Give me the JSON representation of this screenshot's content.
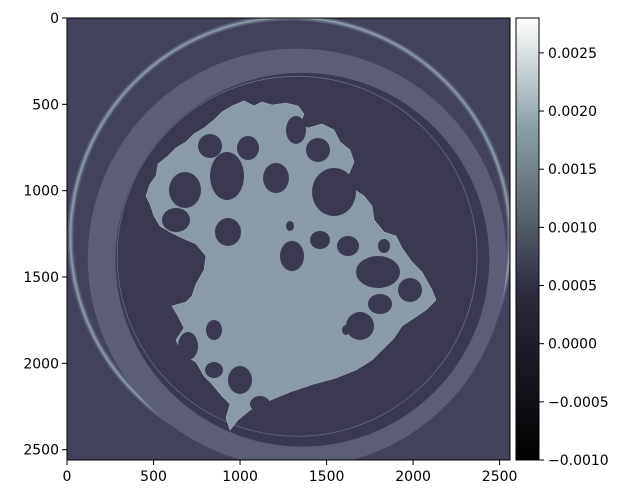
{
  "chart_data": {
    "type": "heatmap",
    "title": "",
    "xlabel": "",
    "ylabel": "",
    "xlim": [
      0,
      2560
    ],
    "ylim": [
      2560,
      0
    ],
    "x_ticks": [
      0,
      500,
      1000,
      1500,
      2000,
      2500
    ],
    "x_tick_labels": [
      "0",
      "500",
      "1000",
      "1500",
      "2000",
      "2500"
    ],
    "y_ticks": [
      0,
      500,
      1000,
      1500,
      2000,
      2500
    ],
    "y_tick_labels": [
      "0",
      "500",
      "1000",
      "1500",
      "2000",
      "2500"
    ],
    "colormap": "bone",
    "colorbar": {
      "vmin": -0.001,
      "vmax": 0.0028,
      "ticks": [
        -0.001,
        -0.0005,
        0.0,
        0.0005,
        0.001,
        0.0015,
        0.002,
        0.0025
      ],
      "tick_labels": [
        "−0.0010",
        "−0.0005",
        "0.0000",
        "0.0005",
        "0.0010",
        "0.0015",
        "0.0020",
        "0.0025"
      ]
    },
    "image_regions": {
      "background_value": 0.0003,
      "outer_ring": {
        "cx": 1290,
        "cy": 1270,
        "r": 1270,
        "value": 0.0024
      },
      "container_wall": {
        "cx": 1330,
        "cy": 1390,
        "r_outer": 1210,
        "r_inner": 1080,
        "value": 0.0006
      },
      "interior": {
        "cx": 1360,
        "cy": 1400,
        "r": 1080,
        "value": 0.0002
      },
      "sample_value": 0.0009,
      "pore_value": 0.0002
    }
  }
}
